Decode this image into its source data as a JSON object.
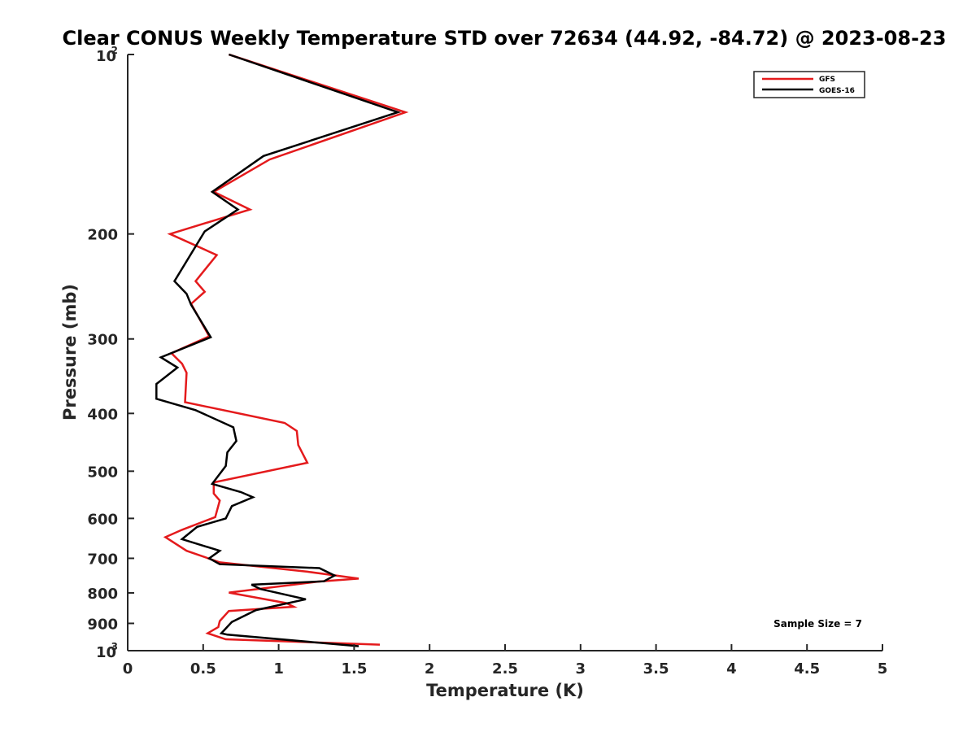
{
  "chart_data": {
    "type": "line",
    "title": "Clear CONUS Weekly Temperature STD over 72634 (44.92, -84.72) @ 2023-08-23",
    "xlabel": "Temperature (K)",
    "ylabel": "Pressure (mb)",
    "xlim": [
      0,
      5
    ],
    "ylim": [
      100,
      1000
    ],
    "y_scale": "log",
    "y_reversed": true,
    "x_ticks": [
      "0",
      "0.5",
      "1",
      "1.5",
      "2",
      "2.5",
      "3",
      "3.5",
      "4",
      "4.5",
      "5"
    ],
    "y_ticks": [
      {
        "value": 100,
        "label": "10",
        "exp": "2"
      },
      {
        "value": 200,
        "label": "200"
      },
      {
        "value": 300,
        "label": "300"
      },
      {
        "value": 400,
        "label": "400"
      },
      {
        "value": 500,
        "label": "500"
      },
      {
        "value": 600,
        "label": "600"
      },
      {
        "value": 700,
        "label": "700"
      },
      {
        "value": 800,
        "label": "800"
      },
      {
        "value": 900,
        "label": "900"
      },
      {
        "value": 1000,
        "label": "10",
        "exp": "3"
      }
    ],
    "grid": false,
    "legend_position": "top-right",
    "annotation": "Sample Size = 7",
    "series": [
      {
        "name": "GFS",
        "color": "#e41a1c",
        "points": [
          [
            0.67,
            100
          ],
          [
            1.84,
            125
          ],
          [
            0.94,
            150
          ],
          [
            0.57,
            170
          ],
          [
            0.81,
            182
          ],
          [
            0.28,
            200
          ],
          [
            0.59,
            217
          ],
          [
            0.45,
            240
          ],
          [
            0.51,
            250
          ],
          [
            0.42,
            262
          ],
          [
            0.54,
            297
          ],
          [
            0.29,
            317
          ],
          [
            0.36,
            330
          ],
          [
            0.39,
            342
          ],
          [
            0.38,
            383
          ],
          [
            1.04,
            415
          ],
          [
            1.12,
            428
          ],
          [
            1.13,
            452
          ],
          [
            1.19,
            484
          ],
          [
            0.57,
            522
          ],
          [
            0.57,
            545
          ],
          [
            0.61,
            560
          ],
          [
            0.58,
            597
          ],
          [
            0.36,
            627
          ],
          [
            0.25,
            645
          ],
          [
            0.39,
            680
          ],
          [
            0.61,
            711
          ],
          [
            1.19,
            737
          ],
          [
            1.53,
            757
          ],
          [
            1.26,
            766
          ],
          [
            0.67,
            799
          ],
          [
            1.05,
            832
          ],
          [
            1.1,
            844
          ],
          [
            0.85,
            852
          ],
          [
            0.67,
            858
          ],
          [
            0.61,
            892
          ],
          [
            0.6,
            913
          ],
          [
            0.53,
            935
          ],
          [
            0.65,
            957
          ],
          [
            1.67,
            977
          ]
        ]
      },
      {
        "name": "GOES-16",
        "color": "#000000",
        "points": [
          [
            0.67,
            100
          ],
          [
            1.79,
            125
          ],
          [
            0.9,
            148
          ],
          [
            0.56,
            170
          ],
          [
            0.73,
            182
          ],
          [
            0.51,
            198
          ],
          [
            0.31,
            240
          ],
          [
            0.39,
            252
          ],
          [
            0.42,
            263
          ],
          [
            0.55,
            298
          ],
          [
            0.22,
            322
          ],
          [
            0.33,
            335
          ],
          [
            0.19,
            357
          ],
          [
            0.19,
            378
          ],
          [
            0.45,
            395
          ],
          [
            0.7,
            422
          ],
          [
            0.72,
            445
          ],
          [
            0.66,
            465
          ],
          [
            0.65,
            490
          ],
          [
            0.56,
            525
          ],
          [
            0.75,
            542
          ],
          [
            0.83,
            553
          ],
          [
            0.69,
            572
          ],
          [
            0.65,
            600
          ],
          [
            0.46,
            620
          ],
          [
            0.36,
            650
          ],
          [
            0.61,
            680
          ],
          [
            0.54,
            700
          ],
          [
            0.61,
            716
          ],
          [
            1.27,
            727
          ],
          [
            1.37,
            748
          ],
          [
            1.3,
            765
          ],
          [
            0.82,
            775
          ],
          [
            0.88,
            788
          ],
          [
            1.18,
            820
          ],
          [
            0.85,
            855
          ],
          [
            0.69,
            895
          ],
          [
            0.62,
            935
          ],
          [
            0.66,
            940
          ],
          [
            1.53,
            983
          ]
        ]
      }
    ]
  }
}
